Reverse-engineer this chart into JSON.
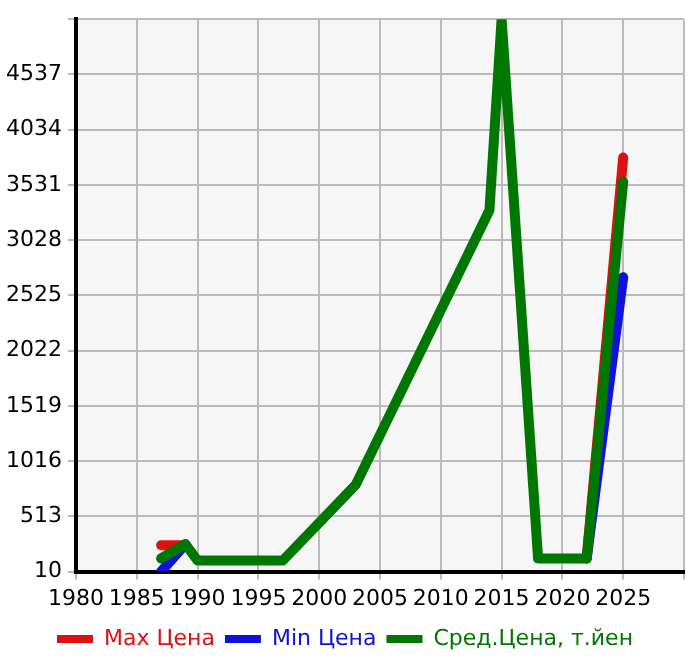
{
  "chart_data": {
    "type": "line",
    "x": [
      1987,
      1989,
      1990,
      1997,
      2003,
      2014,
      2015,
      2018,
      2022,
      2025
    ],
    "series": [
      {
        "name": "Max Цена",
        "color": "#dd1111",
        "values": [
          250,
          250,
          null,
          null,
          null,
          null,
          null,
          null,
          140,
          3780
        ]
      },
      {
        "name": "Min Цена",
        "color": "#1111dd",
        "values": [
          10,
          260,
          null,
          null,
          null,
          null,
          null,
          null,
          130,
          2690
        ]
      },
      {
        "name": "Сред.Цена, т.йен",
        "color": "#007700",
        "values": [
          130,
          260,
          110,
          110,
          800,
          3300,
          5040,
          130,
          130,
          3560
        ]
      }
    ],
    "xlim": [
      1980,
      2030
    ],
    "xticks": [
      1980,
      1985,
      1990,
      1995,
      2000,
      2005,
      2010,
      2015,
      2020,
      2025,
      {
        "value": 2030,
        "label": null
      }
    ],
    "ylim": [
      10,
      5040
    ],
    "yticks": [
      10,
      513,
      1016,
      1519,
      2022,
      2525,
      3028,
      3531,
      4034,
      4537,
      {
        "value": 5040,
        "label": null
      }
    ],
    "grid": true,
    "legend": "bottom",
    "marker": "none",
    "line_style": "solid"
  }
}
